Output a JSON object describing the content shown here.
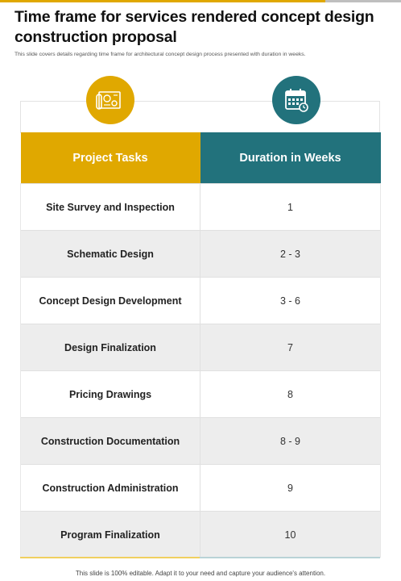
{
  "title": "Time frame for services rendered concept design construction proposal",
  "subtitle": "This slide covers details regarding time frame for architectural concept design process presented with duration in weeks.",
  "icons": {
    "left": "blueprint-icon",
    "right": "calendar-icon"
  },
  "colors": {
    "gold": "#e0a800",
    "teal": "#22727c",
    "alt_row": "#ededed"
  },
  "table": {
    "headers": {
      "tasks": "Project Tasks",
      "duration": "Duration in Weeks"
    },
    "rows": [
      {
        "task": "Site Survey and Inspection",
        "duration": "1"
      },
      {
        "task": "Schematic Design",
        "duration": "2 - 3"
      },
      {
        "task": "Concept Design Development",
        "duration": "3 - 6"
      },
      {
        "task": "Design Finalization",
        "duration": "7"
      },
      {
        "task": "Pricing Drawings",
        "duration": "8"
      },
      {
        "task": "Construction Documentation",
        "duration": "8 - 9"
      },
      {
        "task": "Construction Administration",
        "duration": "9"
      },
      {
        "task": "Program Finalization",
        "duration": "10"
      }
    ]
  },
  "footer": "This slide is 100% editable. Adapt it to your need and capture your audience's attention."
}
